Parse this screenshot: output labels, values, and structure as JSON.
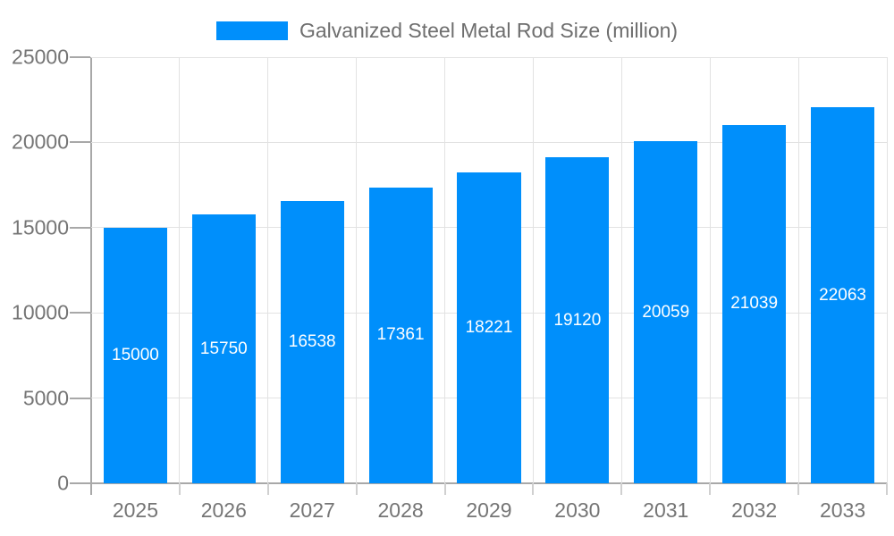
{
  "legend": {
    "label": "Galvanized Steel Metal Rod Size (million)",
    "swatch_color": "#008FFB"
  },
  "chart_data": {
    "type": "bar",
    "title": "Galvanized Steel Metal Rod Size (million)",
    "categories": [
      "2025",
      "2026",
      "2027",
      "2028",
      "2029",
      "2030",
      "2031",
      "2032",
      "2033"
    ],
    "values": [
      15000,
      15750,
      16538,
      17361,
      18221,
      19120,
      20059,
      21039,
      22063
    ],
    "xlabel": "",
    "ylabel": "",
    "ylim": [
      0,
      25000
    ],
    "y_ticks": [
      0,
      5000,
      10000,
      15000,
      20000,
      25000
    ],
    "grid": "both",
    "legend_position": "top",
    "colors": {
      "bar": "#008FFB",
      "value_label": "#ffffff",
      "axis_label": "#757575",
      "legend_label": "#6e6e6e",
      "gridline": "#e2e2e2",
      "axis_line": "#a8a8a8"
    }
  }
}
